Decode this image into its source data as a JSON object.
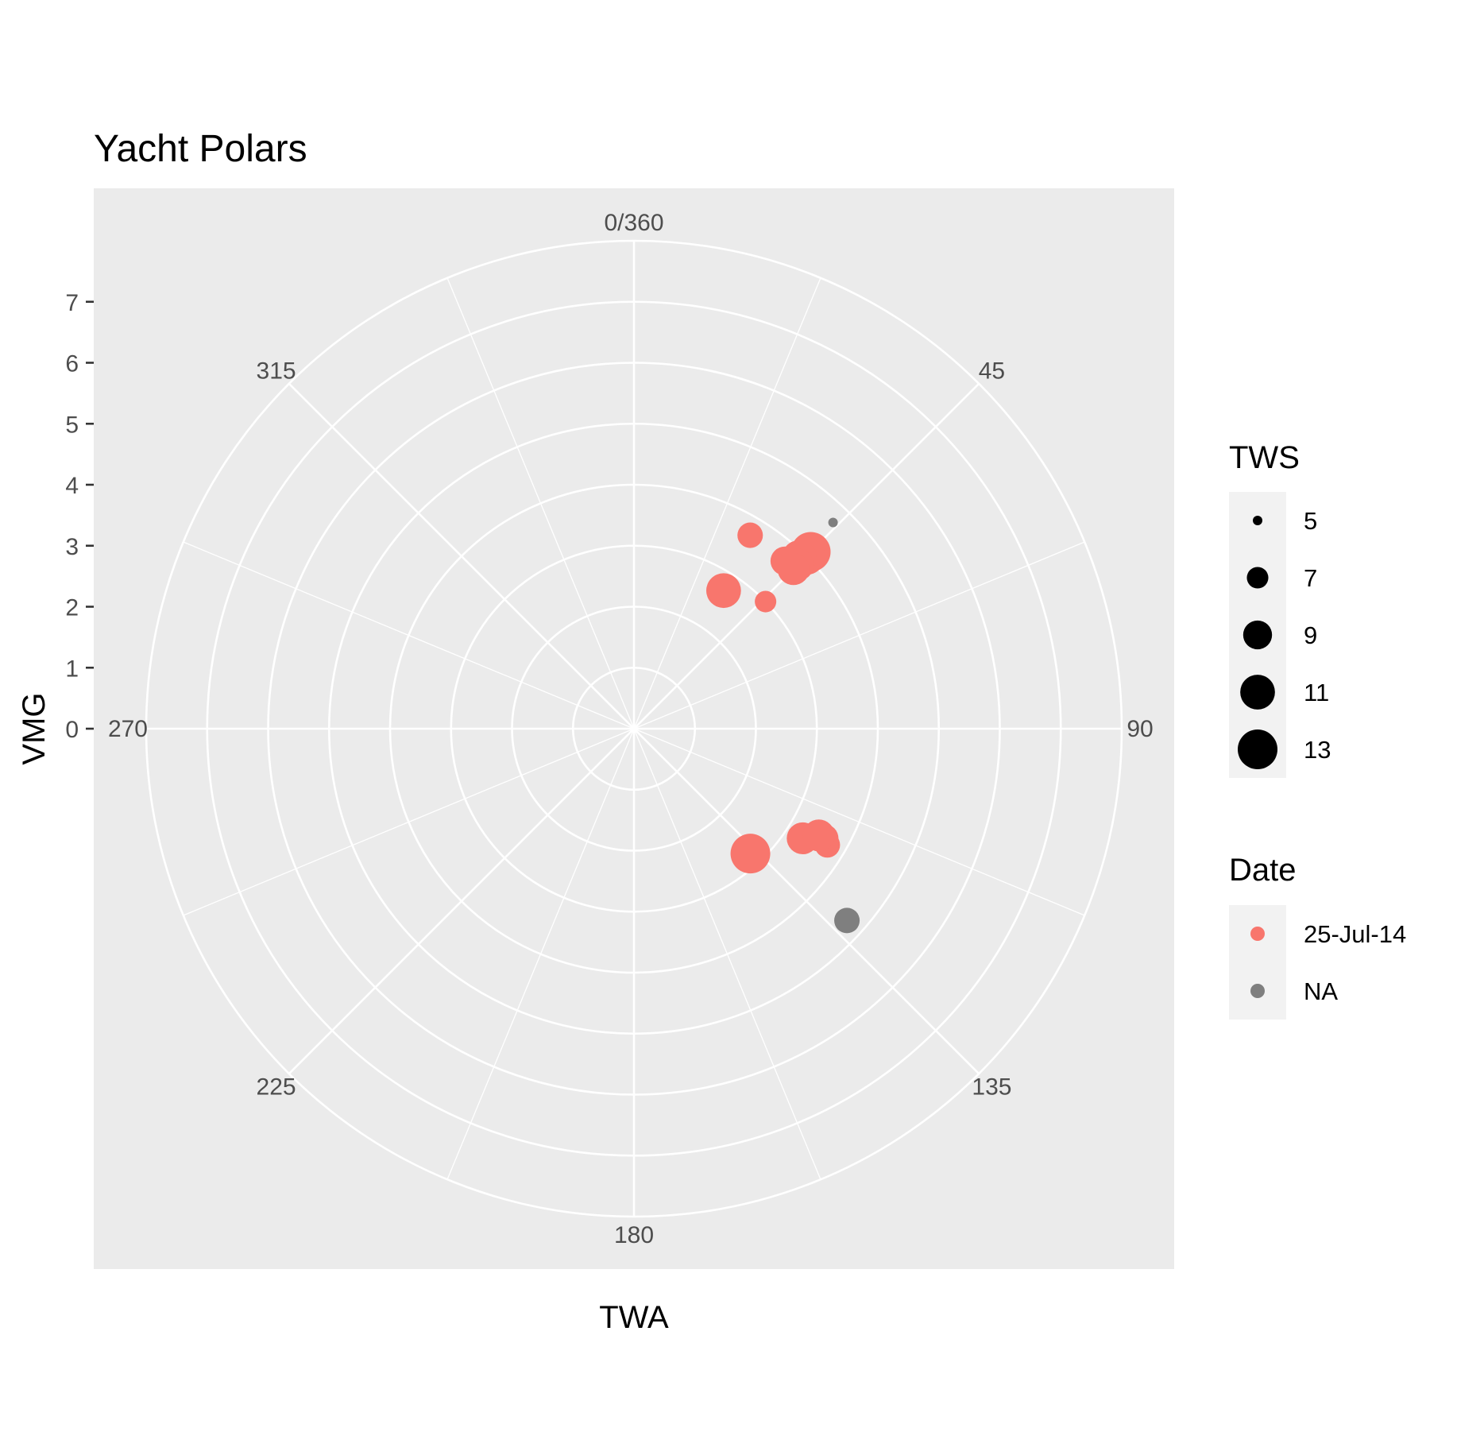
{
  "chart_data": {
    "type": "scatter",
    "coord": "polar",
    "title": "Yacht Polars",
    "xlabel": "TWA",
    "ylabel": "VMG",
    "theta_breaks": [
      "0/360",
      "45",
      "90",
      "135",
      "180",
      "225",
      "270",
      "315"
    ],
    "theta_range": [
      0,
      360
    ],
    "r_breaks": [
      0,
      1,
      2,
      3,
      4,
      5,
      6,
      7
    ],
    "r_range": [
      0,
      8
    ],
    "grid": true,
    "colors": {
      "panel": "#EBEBEB",
      "grid": "#FFFFFF",
      "25-Jul-14": "#F8766D",
      "NA": "#7F7F7F"
    },
    "points": [
      {
        "twa": 44,
        "vmg": 4.7,
        "tws": 5,
        "date": "NA"
      },
      {
        "twa": 45,
        "vmg": 4.1,
        "tws": 13,
        "date": "25-Jul-14"
      },
      {
        "twa": 45,
        "vmg": 4.0,
        "tws": 12,
        "date": "25-Jul-14"
      },
      {
        "twa": 44,
        "vmg": 3.9,
        "tws": 11,
        "date": "25-Jul-14"
      },
      {
        "twa": 45,
        "vmg": 3.8,
        "tws": 10,
        "date": "25-Jul-14"
      },
      {
        "twa": 45,
        "vmg": 3.7,
        "tws": 10,
        "date": "25-Jul-14"
      },
      {
        "twa": 42,
        "vmg": 3.7,
        "tws": 9,
        "date": "25-Jul-14"
      },
      {
        "twa": 31,
        "vmg": 3.7,
        "tws": 8,
        "date": "25-Jul-14"
      },
      {
        "twa": 33,
        "vmg": 2.7,
        "tws": 11,
        "date": "25-Jul-14"
      },
      {
        "twa": 46,
        "vmg": 3.0,
        "tws": 7,
        "date": "25-Jul-14"
      },
      {
        "twa": 132,
        "vmg": 4.7,
        "tws": 8,
        "date": "NA"
      },
      {
        "twa": 121,
        "vmg": 3.7,
        "tws": 8,
        "date": "25-Jul-14"
      },
      {
        "twa": 120,
        "vmg": 3.6,
        "tws": 9,
        "date": "25-Jul-14"
      },
      {
        "twa": 123,
        "vmg": 3.3,
        "tws": 10,
        "date": "25-Jul-14"
      },
      {
        "twa": 120,
        "vmg": 3.5,
        "tws": 10,
        "date": "25-Jul-14"
      },
      {
        "twa": 137,
        "vmg": 2.8,
        "tws": 13,
        "date": "25-Jul-14"
      }
    ],
    "legends": {
      "size": {
        "title": "TWS",
        "breaks": [
          5,
          7,
          9,
          11,
          13
        ],
        "labels": [
          "5",
          "7",
          "9",
          "11",
          "13"
        ]
      },
      "color": {
        "title": "Date",
        "labels": [
          "25-Jul-14",
          "NA"
        ]
      }
    }
  }
}
